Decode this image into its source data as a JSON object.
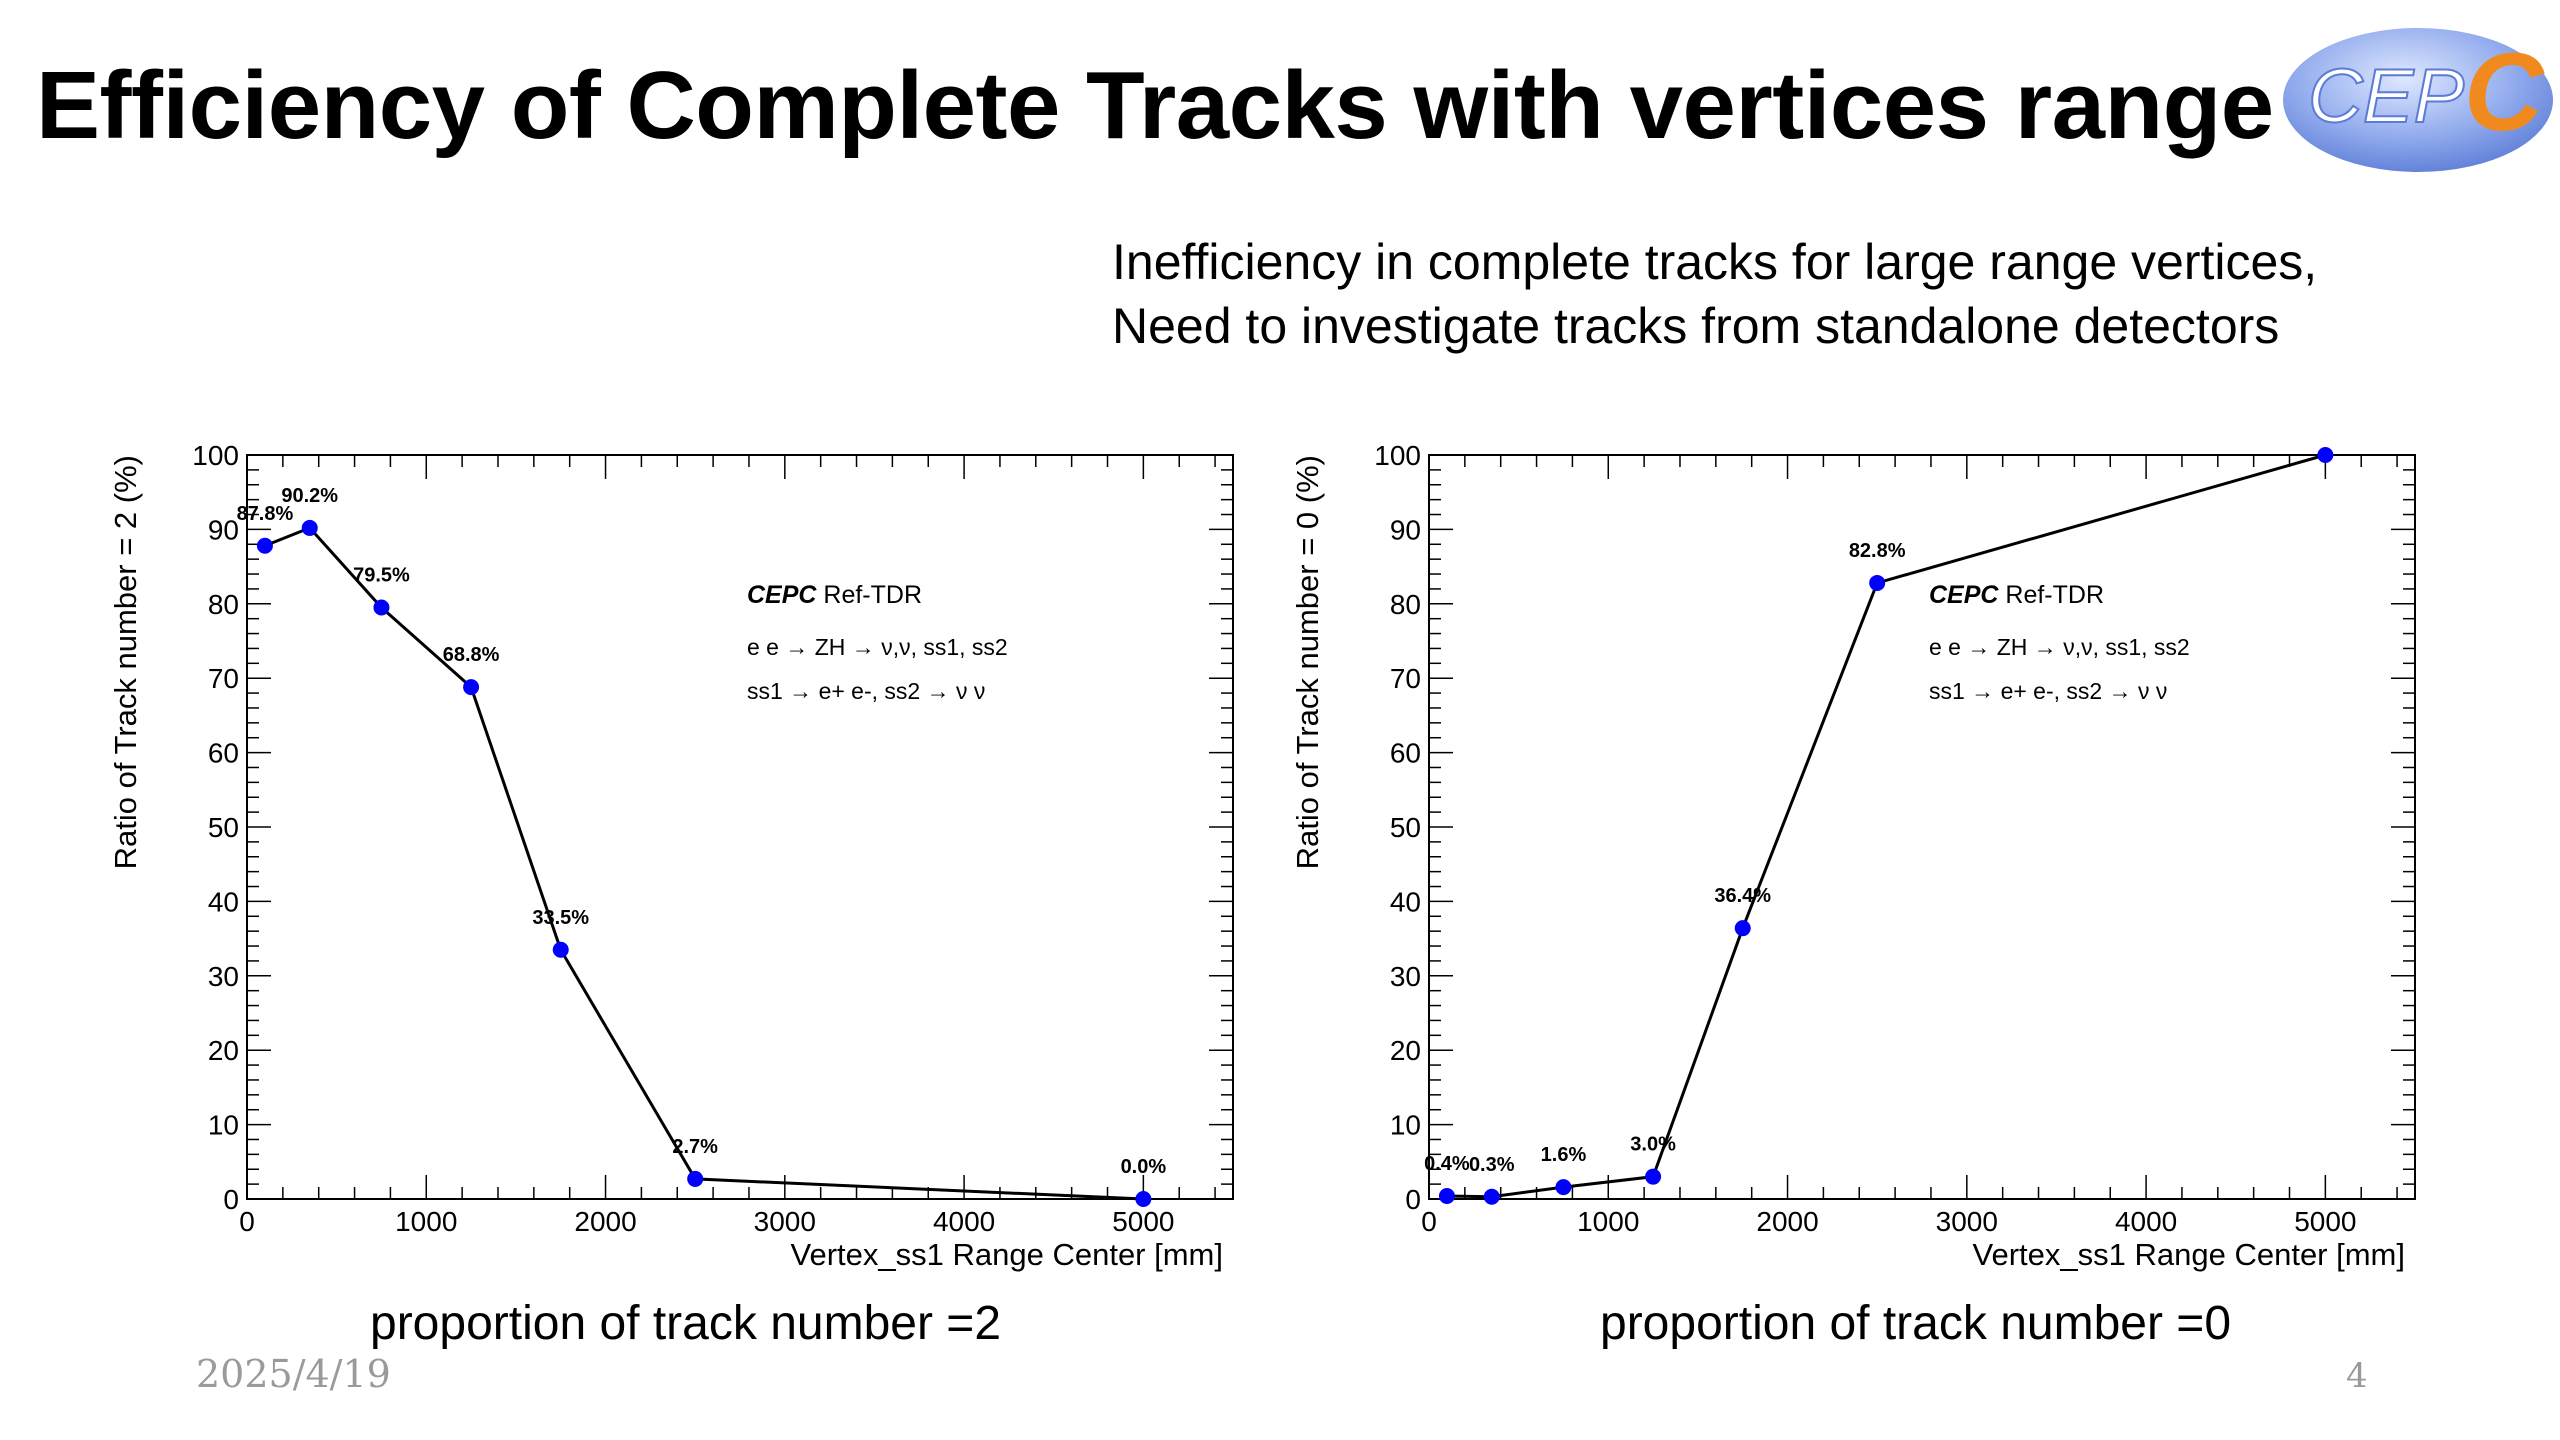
{
  "slide": {
    "title": "Efficiency of Complete Tracks with vertices range",
    "logo_text": "CEPC",
    "note_line1": "Inefficiency in complete tracks for large range vertices,",
    "note_line2": "Need to investigate tracks from standalone detectors",
    "date": "2025/4/19",
    "page": "4",
    "caption_left": "proportion of track number =2",
    "caption_right": "proportion of track number =0"
  },
  "colors": {
    "marker": "#0000ff",
    "line": "#000000",
    "logo_blue": "#6f8fe0",
    "logo_orange": "#f08a1e"
  },
  "chart_data": [
    {
      "type": "line",
      "xlabel": "Vertex_ss1 Range Center [mm]",
      "ylabel": "Ratio of Track number = 2 (%)",
      "xlim": [
        0,
        5500
      ],
      "ylim": [
        0,
        100
      ],
      "xticks": [
        0,
        1000,
        2000,
        3000,
        4000,
        5000
      ],
      "yticks": [
        0,
        10,
        20,
        30,
        40,
        50,
        60,
        70,
        80,
        90,
        100
      ],
      "grid": false,
      "x": [
        100,
        350,
        750,
        1250,
        1750,
        2500,
        5000
      ],
      "y": [
        87.8,
        90.2,
        79.5,
        68.8,
        33.5,
        2.7,
        0.0
      ],
      "point_labels": [
        "87.8%",
        "90.2%",
        "79.5%",
        "68.8%",
        "33.5%",
        "2.7%",
        "0.0%"
      ],
      "annotations": [
        "Ref-TDR",
        "e e → ZH → ν,ν, ss1, ss2",
        "ss1 → e+ e-, ss2 → ν ν"
      ],
      "annotation_prefix": "CEPC"
    },
    {
      "type": "line",
      "xlabel": "Vertex_ss1 Range Center [mm]",
      "ylabel": "Ratio of Track number = 0 (%)",
      "xlim": [
        0,
        5500
      ],
      "ylim": [
        0,
        100
      ],
      "xticks": [
        0,
        1000,
        2000,
        3000,
        4000,
        5000
      ],
      "yticks": [
        0,
        10,
        20,
        30,
        40,
        50,
        60,
        70,
        80,
        90,
        100
      ],
      "grid": false,
      "x": [
        100,
        350,
        750,
        1250,
        1750,
        2500,
        5000
      ],
      "y": [
        0.4,
        0.3,
        1.6,
        3.0,
        36.4,
        82.8,
        100.0
      ],
      "point_labels": [
        "0.4%",
        "0.3%",
        "1.6%",
        "3.0%",
        "36.4%",
        "82.8%",
        ""
      ],
      "annotations": [
        "Ref-TDR",
        "e e → ZH → ν,ν, ss1, ss2",
        "ss1 → e+ e-, ss2 → ν ν"
      ],
      "annotation_prefix": "CEPC"
    }
  ]
}
